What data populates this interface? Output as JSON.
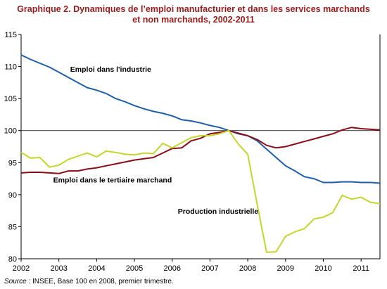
{
  "title": {
    "line1": "Graphique 2. Dynamiques de l’emploi manufacturier et dans les services marchands",
    "line2": "et non marchands, 2002-2011"
  },
  "source": {
    "label": "Source :",
    "text": " INSEE, Base 100 en 2008, premier trimestre."
  },
  "chart_data": {
    "type": "line",
    "title": "Graphique 2. Dynamiques de l’emploi manufacturier et dans les services marchands et non marchands, 2002-2011",
    "xlabel": "",
    "ylabel": "",
    "xlim": [
      2002,
      2011.5
    ],
    "ylim": [
      80,
      115
    ],
    "x_ticks": [
      "2002",
      "2003",
      "2004",
      "2005",
      "2006",
      "2007",
      "2008",
      "2009",
      "2010",
      "2011"
    ],
    "y_ticks": [
      80,
      85,
      90,
      95,
      100,
      105,
      110,
      115
    ],
    "reference_line": 100,
    "grid": false,
    "series": [
      {
        "name": "Emploi dans l'industrie",
        "color": "#1f5fa8",
        "x": [
          2002.0,
          2002.25,
          2002.5,
          2002.75,
          2003.0,
          2003.25,
          2003.5,
          2003.75,
          2004.0,
          2004.25,
          2004.5,
          2004.75,
          2005.0,
          2005.25,
          2005.5,
          2005.75,
          2006.0,
          2006.25,
          2006.5,
          2006.75,
          2007.0,
          2007.25,
          2007.5,
          2007.75,
          2008.0,
          2008.25,
          2008.5,
          2008.75,
          2009.0,
          2009.25,
          2009.5,
          2009.75,
          2010.0,
          2010.25,
          2010.5,
          2010.75,
          2011.0,
          2011.25,
          2011.5
        ],
        "y": [
          111.8,
          111.1,
          110.5,
          109.9,
          109.1,
          108.3,
          107.5,
          106.7,
          106.3,
          105.8,
          105.0,
          104.5,
          103.9,
          103.4,
          103.0,
          102.7,
          102.3,
          101.7,
          101.5,
          101.2,
          100.8,
          100.5,
          100.0,
          99.5,
          99.2,
          98.4,
          97.1,
          95.8,
          94.5,
          93.7,
          92.8,
          92.5,
          91.9,
          91.9,
          92.0,
          92.0,
          91.9,
          91.9,
          91.8
        ]
      },
      {
        "name": "Emploi dans le tertiaire marchand",
        "color": "#8b0d18",
        "x": [
          2002.0,
          2002.25,
          2002.5,
          2002.75,
          2003.0,
          2003.25,
          2003.5,
          2003.75,
          2004.0,
          2004.25,
          2004.5,
          2004.75,
          2005.0,
          2005.25,
          2005.5,
          2005.75,
          2006.0,
          2006.25,
          2006.5,
          2006.75,
          2007.0,
          2007.25,
          2007.5,
          2007.75,
          2008.0,
          2008.25,
          2008.5,
          2008.75,
          2009.0,
          2009.25,
          2009.5,
          2009.75,
          2010.0,
          2010.25,
          2010.5,
          2010.75,
          2011.0,
          2011.25,
          2011.5
        ],
        "y": [
          93.4,
          93.5,
          93.5,
          93.4,
          93.3,
          93.7,
          93.7,
          94.0,
          94.2,
          94.5,
          94.8,
          95.1,
          95.4,
          95.6,
          95.8,
          96.5,
          97.2,
          97.3,
          98.4,
          98.8,
          99.5,
          99.7,
          100.0,
          99.6,
          99.2,
          98.6,
          97.7,
          97.3,
          97.5,
          97.9,
          98.3,
          98.7,
          99.1,
          99.5,
          100.1,
          100.5,
          100.3,
          100.2,
          100.1
        ]
      },
      {
        "name": "Production industrielle",
        "color": "#c2d62b",
        "x": [
          2002.0,
          2002.25,
          2002.5,
          2002.75,
          2003.0,
          2003.25,
          2003.5,
          2003.75,
          2004.0,
          2004.25,
          2004.5,
          2004.75,
          2005.0,
          2005.25,
          2005.5,
          2005.75,
          2006.0,
          2006.25,
          2006.5,
          2006.75,
          2007.0,
          2007.25,
          2007.5,
          2007.75,
          2008.0,
          2008.25,
          2008.5,
          2008.75,
          2009.0,
          2009.25,
          2009.5,
          2009.75,
          2010.0,
          2010.25,
          2010.5,
          2010.75,
          2011.0,
          2011.25,
          2011.5
        ],
        "y": [
          96.6,
          95.7,
          95.8,
          94.3,
          94.6,
          95.5,
          96.0,
          96.5,
          95.9,
          96.8,
          96.6,
          96.3,
          96.2,
          96.5,
          96.4,
          98.0,
          97.3,
          98.1,
          98.9,
          99.2,
          99.2,
          99.5,
          100.0,
          97.9,
          96.3,
          88.5,
          81.0,
          81.1,
          83.5,
          84.2,
          84.7,
          86.2,
          86.5,
          87.2,
          89.9,
          89.3,
          89.6,
          88.8,
          88.6
        ]
      }
    ],
    "annotations": [
      {
        "text": "Emploi dans l'industrie",
        "x": 2003.3,
        "y": 109.2
      },
      {
        "text": "Emploi dans le tertiaire marchand",
        "x": 2002.85,
        "y": 91.9
      },
      {
        "text": "Production industrielle",
        "x": 2006.15,
        "y": 87.0
      }
    ]
  }
}
